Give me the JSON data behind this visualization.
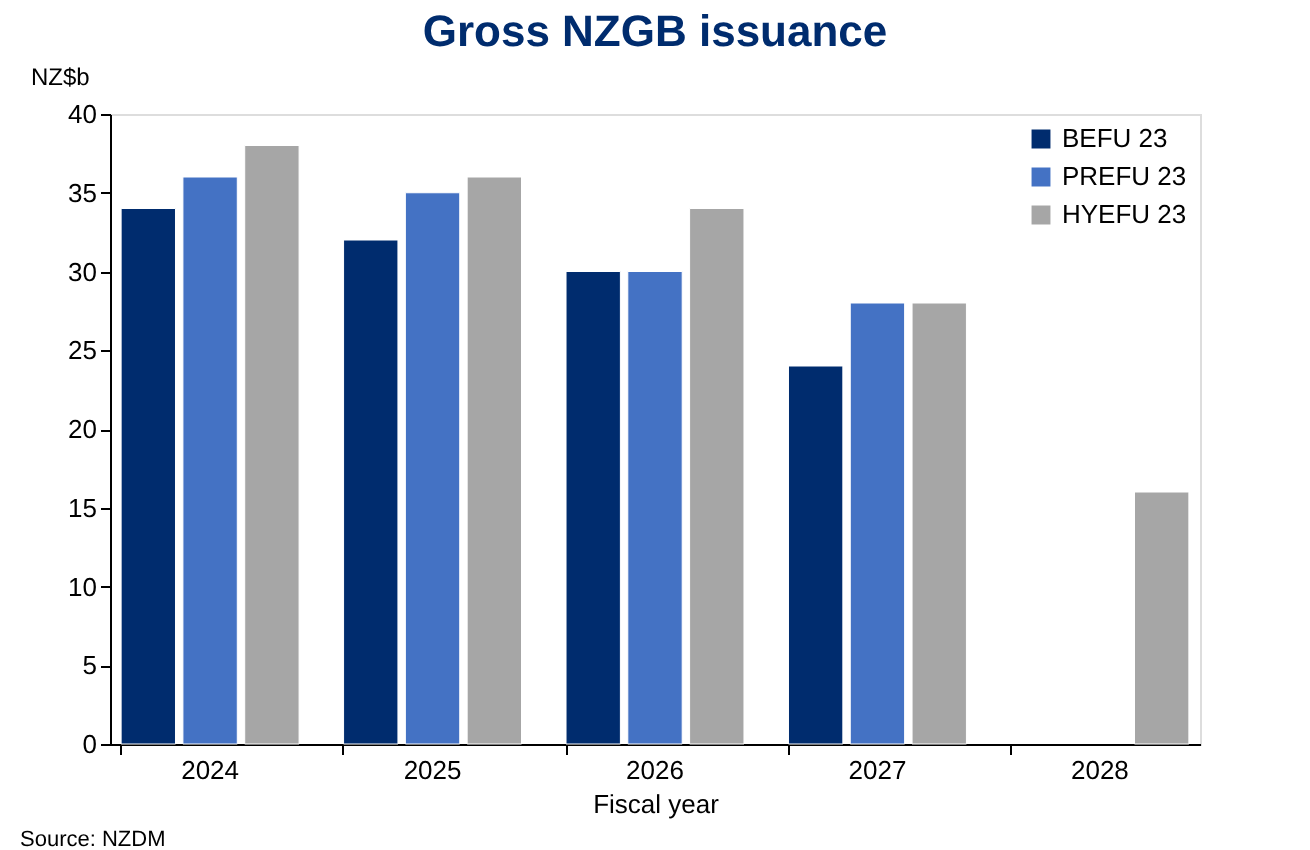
{
  "chart_data": {
    "type": "bar",
    "title": "Gross NZGB issuance",
    "ylabel": "NZ$b",
    "xlabel": "Fiscal year",
    "categories": [
      "2024",
      "2025",
      "2026",
      "2027",
      "2028"
    ],
    "series": [
      {
        "name": "BEFU 23",
        "color": "#002c6e",
        "values": [
          34,
          32,
          30,
          24,
          null
        ]
      },
      {
        "name": "PREFU 23",
        "color": "#4472c4",
        "values": [
          36,
          35,
          30,
          28,
          null
        ]
      },
      {
        "name": "HYEFU 23",
        "color": "#a6a6a6",
        "values": [
          38,
          36,
          34,
          28,
          16
        ]
      }
    ],
    "ylim": [
      0,
      40
    ],
    "yticks": [
      0,
      5,
      10,
      15,
      20,
      25,
      30,
      35,
      40
    ],
    "grid": false,
    "legend": "top right",
    "annotations": [
      "Source: NZDM"
    ]
  }
}
